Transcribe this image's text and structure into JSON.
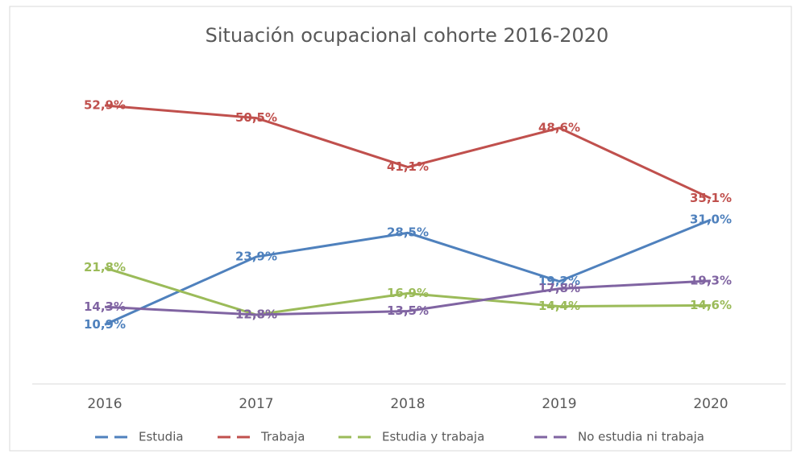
{
  "chart_data": {
    "type": "line",
    "title": "Situación ocupacional cohorte 2016-2020",
    "categories": [
      "2016",
      "2017",
      "2018",
      "2019",
      "2020"
    ],
    "ylim": [
      0,
      60
    ],
    "legend": "bottom",
    "series": [
      {
        "name": "Estudia",
        "color": "#4f81bd",
        "values": [
          10.9,
          23.9,
          28.5,
          19.2,
          31.0
        ],
        "value_labels": [
          "10,9%",
          "23,9%",
          "28,5%",
          "19,2%",
          "31,0%"
        ]
      },
      {
        "name": "Trabaja",
        "color": "#c0504d",
        "values": [
          52.9,
          50.5,
          41.1,
          48.6,
          35.1
        ],
        "value_labels": [
          "52,9%",
          "50,5%",
          "41,1%",
          "48,6%",
          "35,1%"
        ]
      },
      {
        "name": "Estudia y trabaja",
        "color": "#9bbb59",
        "values": [
          21.8,
          12.8,
          16.9,
          14.4,
          14.6
        ],
        "value_labels": [
          "21,8%",
          "12,8%",
          "16,9%",
          "14,4%",
          "14,6%"
        ]
      },
      {
        "name": "No estudia ni trabaja",
        "color": "#8064a2",
        "values": [
          14.3,
          12.8,
          13.5,
          17.8,
          19.3
        ],
        "value_labels": [
          "14,3%",
          "12,8%",
          "13,5%",
          "17,8%",
          "19,3%"
        ]
      }
    ]
  }
}
